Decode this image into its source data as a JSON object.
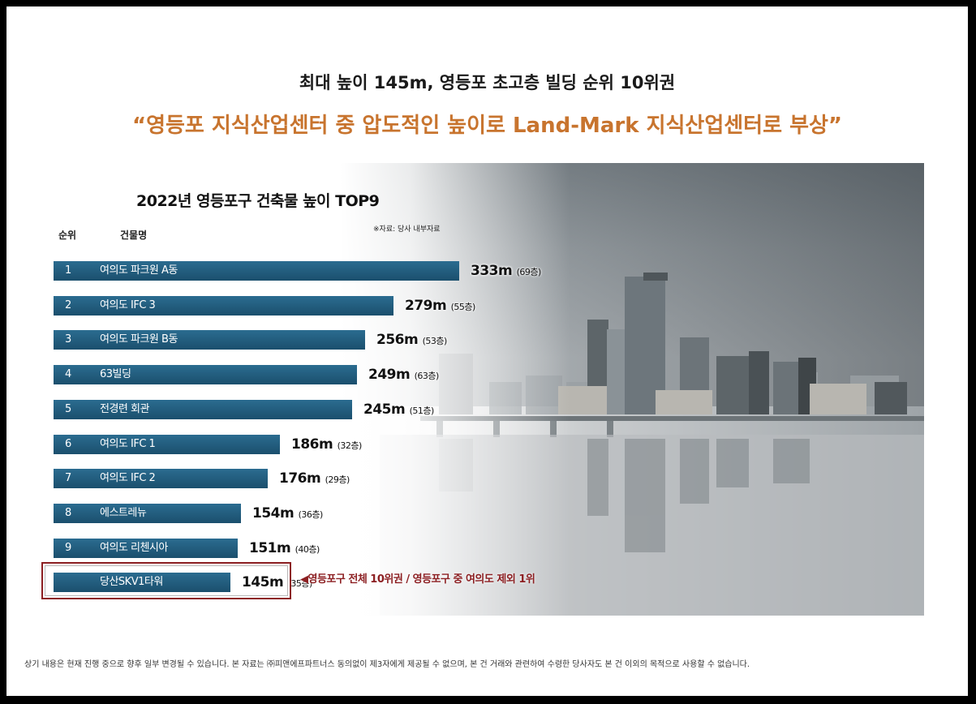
{
  "headline": "최대 높이 145m, 영등포 초고층 빌딩 순위 10위권",
  "tagline": "“영등포 지식산업센터 중 압도적인 높이로 Land-Mark 지식산업센터로 부상”",
  "disclaimer": "상기 내용은 현재 진행 중으로 향후 일부 변경될 수 있습니다. 본 자료는 ㈜피앤에프파트너스 동의없이 제3자에게 제공될 수 없으며, 본 건 거래와 관련하여 수령한 당사자도 본 건 이외의 목적으로 사용할 수 없습니다.",
  "chart_data": {
    "type": "bar",
    "orientation": "horizontal",
    "title": "2022년 영등포구 건축물 높이 TOP9",
    "column_headers": {
      "rank": "순위",
      "name": "건물명"
    },
    "source": "※자료: 당사 내부자료",
    "unit": "m",
    "xlim": [
      0,
      333
    ],
    "bars": [
      {
        "rank": "1",
        "name": "여의도 파크원 A동",
        "value": 333,
        "value_label": "333m",
        "floors": "(69층)"
      },
      {
        "rank": "2",
        "name": "여의도 IFC 3",
        "value": 279,
        "value_label": "279m",
        "floors": "(55층)"
      },
      {
        "rank": "3",
        "name": "여의도 파크원 B동",
        "value": 256,
        "value_label": "256m",
        "floors": "(53층)"
      },
      {
        "rank": "4",
        "name": "63빌딩",
        "value": 249,
        "value_label": "249m",
        "floors": "(63층)"
      },
      {
        "rank": "5",
        "name": "전경련 회관",
        "value": 245,
        "value_label": "245m",
        "floors": "(51층)"
      },
      {
        "rank": "6",
        "name": "여의도 IFC 1",
        "value": 186,
        "value_label": "186m",
        "floors": "(32층)"
      },
      {
        "rank": "7",
        "name": "여의도 IFC 2",
        "value": 176,
        "value_label": "176m",
        "floors": "(29층)"
      },
      {
        "rank": "8",
        "name": "에스트레뉴",
        "value": 154,
        "value_label": "154m",
        "floors": "(36층)"
      },
      {
        "rank": "9",
        "name": "여의도 리첸시아",
        "value": 151,
        "value_label": "151m",
        "floors": "(40층)"
      },
      {
        "rank": "",
        "name": "당산SKV1타워",
        "value": 145,
        "value_label": "145m",
        "floors": "(35층)",
        "highlight": true
      }
    ],
    "highlight_note": "◀영등포구 전체 10위권 / 영등포구 중 여의도 제외 1위",
    "colors": {
      "bar": "#1f5d80",
      "highlight_frame": "#8c1f22",
      "tagline": "#c8742e"
    }
  }
}
